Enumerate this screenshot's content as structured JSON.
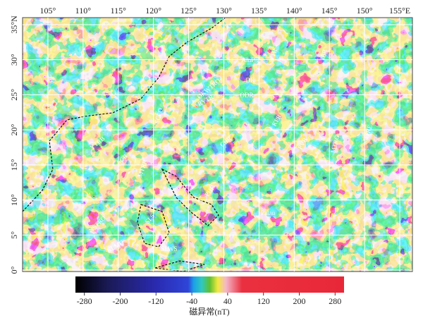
{
  "map": {
    "xlim": [
      101.4,
      156.8
    ],
    "ylim": [
      -0.2,
      36
    ],
    "xticks": [
      {
        "value": 105,
        "label": "105°"
      },
      {
        "value": 110,
        "label": "110°"
      },
      {
        "value": 115,
        "label": "115°"
      },
      {
        "value": 120,
        "label": "120°"
      },
      {
        "value": 125,
        "label": "125°"
      },
      {
        "value": 130,
        "label": "130°"
      },
      {
        "value": 135,
        "label": "135°"
      },
      {
        "value": 140,
        "label": "140°"
      },
      {
        "value": 145,
        "label": "145°"
      },
      {
        "value": 150,
        "label": "150°"
      },
      {
        "value": 155,
        "label": "155°E"
      }
    ],
    "yticks": [
      {
        "value": 0,
        "label": "0°"
      },
      {
        "value": 5,
        "label": "5°"
      },
      {
        "value": 10,
        "label": "10°"
      },
      {
        "value": 15,
        "label": "15°"
      },
      {
        "value": 20,
        "label": "20°"
      },
      {
        "value": 25,
        "label": "25°"
      },
      {
        "value": 30,
        "label": "30°"
      },
      {
        "value": 35,
        "label": "35°N"
      }
    ],
    "labels": [
      "AmP",
      "OKWTRO",
      "RYTR",
      "DK",
      "ODR",
      "KPR",
      "WTR",
      "PVB",
      "MTRG",
      "MTRE",
      "IBR",
      "YTRB",
      "SCB",
      "MTRB",
      "NSTRO",
      "SLS",
      "SLWS",
      "KLMD",
      "SCPO",
      "PHR",
      "Palau",
      "CBR"
    ]
  },
  "colorbar": {
    "lim": [
      -300,
      300
    ],
    "ticks": [
      -280,
      -200,
      -120,
      -40,
      40,
      120,
      200,
      280
    ],
    "label": "磁异常(nT)"
  }
}
